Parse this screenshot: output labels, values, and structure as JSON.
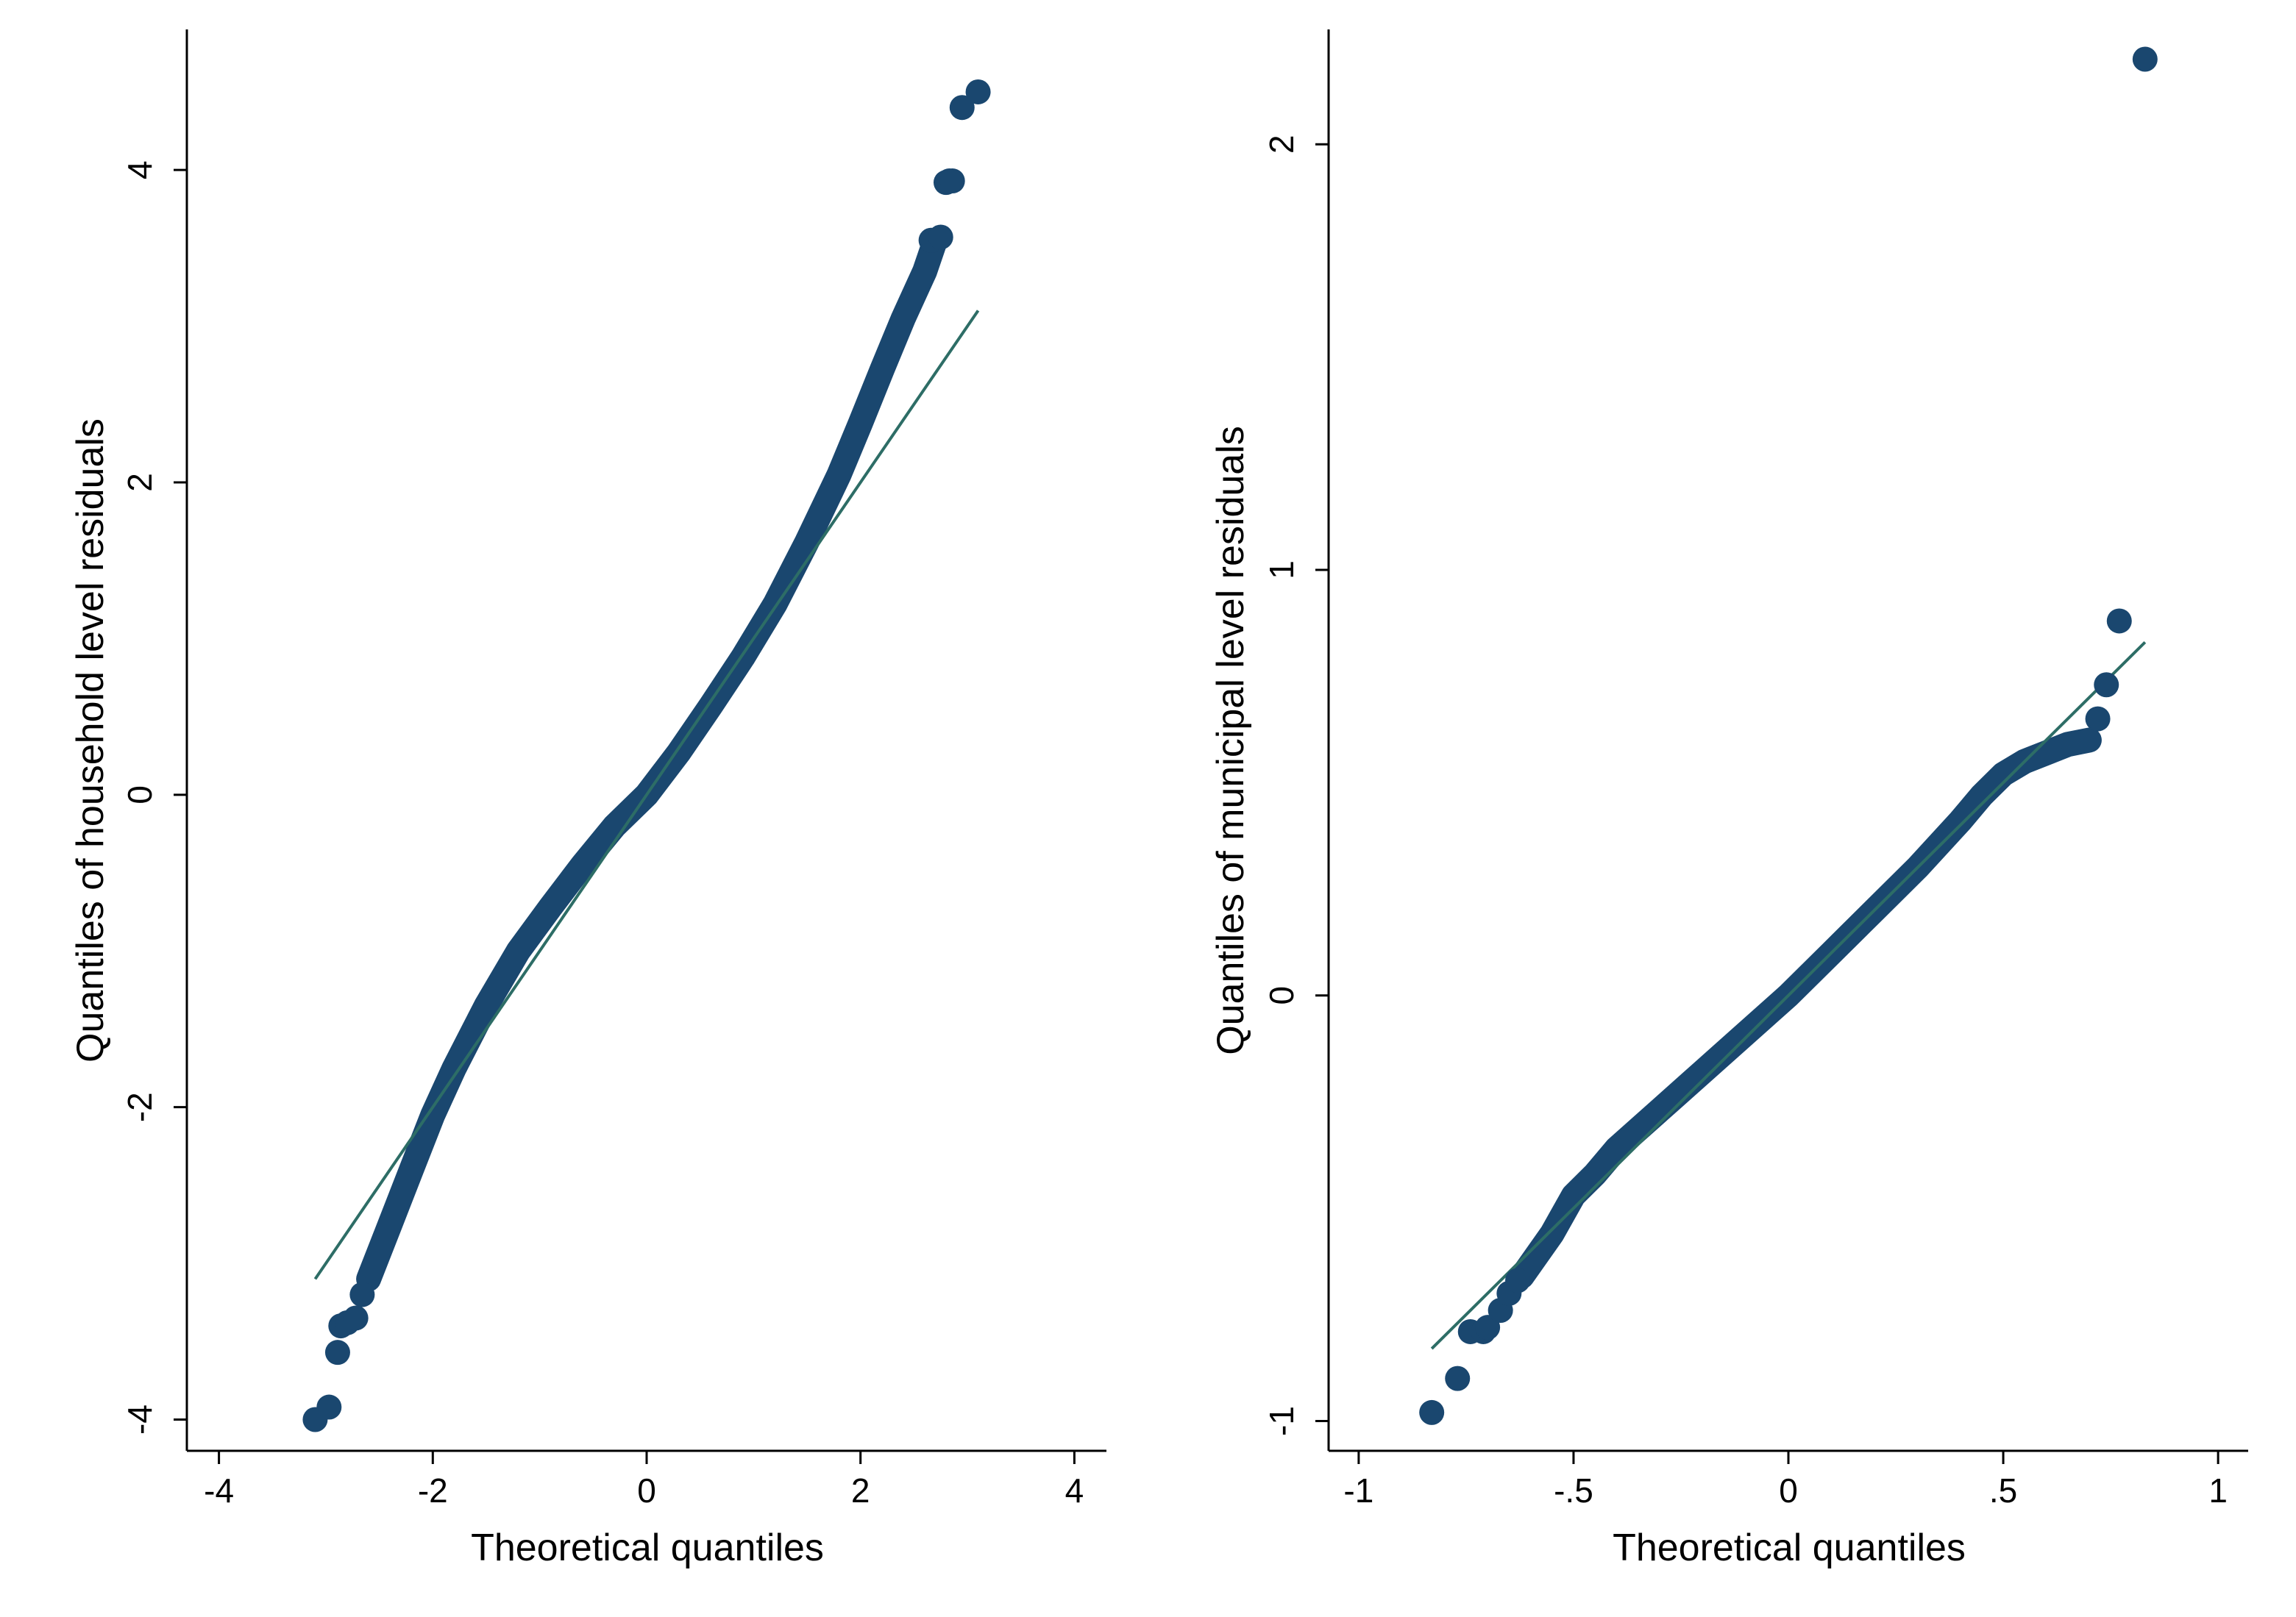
{
  "colors": {
    "marker": "#1a476f",
    "reference_line": "#2d6d66",
    "axis": "#000000"
  },
  "chart_data": [
    {
      "type": "scatter",
      "subtype": "qq-plot",
      "xlabel": "Theoretical quantiles",
      "ylabel": "Quantiles of household level residuals",
      "xlim": [
        -4.3,
        4.3
      ],
      "ylim": [
        -4.2,
        4.9
      ],
      "xticks": [
        -4,
        -2,
        0,
        2,
        4
      ],
      "xtick_labels": [
        "-4",
        "-2",
        "0",
        "2",
        "4"
      ],
      "yticks": [
        -4,
        -2,
        0,
        2,
        4
      ],
      "ytick_labels": [
        "-4",
        "-2",
        "0",
        "2",
        "4"
      ],
      "grid": false,
      "reference_line": {
        "x": [
          -3.1,
          3.1
        ],
        "y": [
          -3.1,
          3.1
        ]
      },
      "curve": {
        "x": [
          -2.6,
          -2.4,
          -2.2,
          -2.0,
          -1.8,
          -1.5,
          -1.2,
          -0.9,
          -0.6,
          -0.3,
          0.0,
          0.3,
          0.6,
          0.9,
          1.2,
          1.5,
          1.8,
          2.0,
          2.2,
          2.4,
          2.6,
          2.7
        ],
        "y": [
          -3.1,
          -2.75,
          -2.4,
          -2.05,
          -1.75,
          -1.35,
          -1.0,
          -0.72,
          -0.45,
          -0.2,
          0.0,
          0.27,
          0.57,
          0.88,
          1.22,
          1.62,
          2.05,
          2.38,
          2.72,
          3.05,
          3.35,
          3.55
        ]
      },
      "points": {
        "x": [
          -3.1,
          -2.97,
          -2.89,
          -2.86,
          -2.8,
          -2.72,
          -2.66,
          2.66,
          2.75,
          2.8,
          2.83,
          2.86,
          2.95,
          3.1
        ],
        "y": [
          -4.0,
          -3.92,
          -3.57,
          -3.4,
          -3.38,
          -3.35,
          -3.2,
          3.55,
          3.57,
          3.92,
          3.93,
          3.93,
          4.4,
          4.5
        ]
      }
    },
    {
      "type": "scatter",
      "subtype": "qq-plot",
      "xlabel": "Theoretical quantiles",
      "ylabel": "Quantiles of municipal level residuals",
      "xlim": [
        -1.07,
        1.07
      ],
      "ylim": [
        -1.07,
        2.27
      ],
      "xticks": [
        -1,
        -0.5,
        0,
        0.5,
        1
      ],
      "xtick_labels": [
        "-1",
        "-.5",
        "0",
        ".5",
        "1"
      ],
      "yticks": [
        -1,
        0,
        1,
        2
      ],
      "ytick_labels": [
        "-1",
        "0",
        "1",
        "2"
      ],
      "grid": false,
      "reference_line": {
        "x": [
          -0.83,
          0.83
        ],
        "y": [
          -0.83,
          0.83
        ]
      },
      "curve": {
        "x": [
          -0.62,
          -0.55,
          -0.5,
          -0.45,
          -0.4,
          -0.3,
          -0.2,
          -0.1,
          0.0,
          0.1,
          0.2,
          0.3,
          0.4,
          0.45,
          0.5,
          0.55,
          0.6,
          0.65,
          0.7
        ],
        "y": [
          -0.66,
          -0.56,
          -0.47,
          -0.42,
          -0.36,
          -0.27,
          -0.18,
          -0.09,
          0.0,
          0.1,
          0.2,
          0.3,
          0.41,
          0.47,
          0.52,
          0.55,
          0.57,
          0.59,
          0.6
        ],
        "extra_y_dummy": null
      },
      "points": {
        "x": [
          -0.83,
          -0.77,
          -0.74,
          -0.71,
          -0.7,
          -0.67,
          -0.65,
          -0.63,
          0.72,
          0.74,
          0.77,
          0.83
        ],
        "y": [
          -0.98,
          -0.9,
          -0.79,
          -0.79,
          -0.78,
          -0.74,
          -0.7,
          -0.67,
          0.65,
          0.73,
          0.88,
          2.2
        ]
      }
    }
  ]
}
